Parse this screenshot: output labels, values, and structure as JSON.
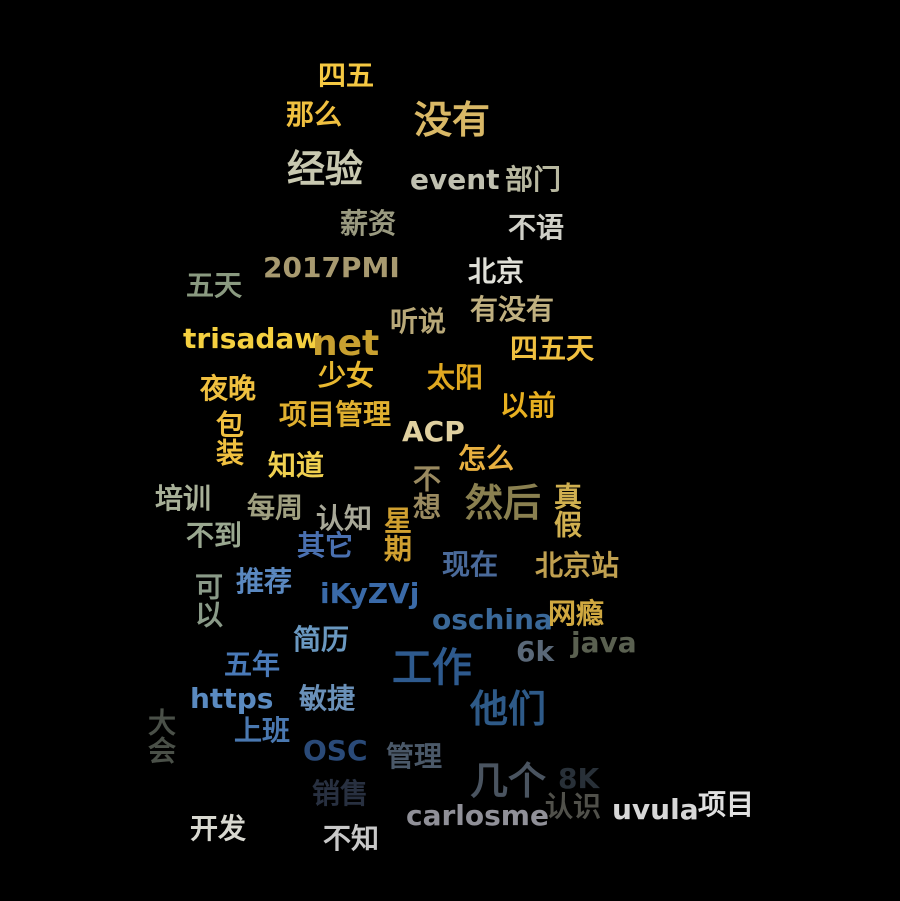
{
  "words": [
    {
      "text": "四五",
      "color": "#f5c842"
    },
    {
      "text": "那么",
      "color": "#f0c040"
    },
    {
      "text": "没有",
      "color": "#d9b866"
    },
    {
      "text": "经验",
      "color": "#c8c8b0"
    },
    {
      "text": "event",
      "color": "#c0c0b0"
    },
    {
      "text": "部门",
      "color": "#b8b8a0"
    },
    {
      "text": "薪资",
      "color": "#9a9a80"
    },
    {
      "text": "不语",
      "color": "#d0d0c8"
    },
    {
      "text": "2017PMI",
      "color": "#a89a70"
    },
    {
      "text": "北京",
      "color": "#e0e0d8"
    },
    {
      "text": "五天",
      "color": "#8a9a80"
    },
    {
      "text": "有没有",
      "color": "#c0b080"
    },
    {
      "text": "听说",
      "color": "#b8a878"
    },
    {
      "text": "trisadaw",
      "color": "#f5d040"
    },
    {
      "text": "net",
      "color": "#c8a030"
    },
    {
      "text": "四五天",
      "color": "#f0c040"
    },
    {
      "text": "少女",
      "color": "#e8b830"
    },
    {
      "text": "太阳",
      "color": "#e0a820"
    },
    {
      "text": "夜晚",
      "color": "#f0c040"
    },
    {
      "text": "以前",
      "color": "#e8b020"
    },
    {
      "text": "项目管理",
      "color": "#e0b030"
    },
    {
      "text": "ACP",
      "color": "#e0d0a0"
    },
    {
      "text": "包装",
      "color": "#f0c040"
    },
    {
      "text": "怎么",
      "color": "#e8b040"
    },
    {
      "text": "知道",
      "color": "#f0d050"
    },
    {
      "text": "不想",
      "color": "#9a8a60"
    },
    {
      "text": "然后",
      "color": "#8a8050"
    },
    {
      "text": "培训",
      "color": "#a8b098"
    },
    {
      "text": "每周",
      "color": "#a0a080"
    },
    {
      "text": "认知",
      "color": "#a8a898"
    },
    {
      "text": "星期",
      "color": "#d0a030"
    },
    {
      "text": "真假",
      "color": "#d0b050"
    },
    {
      "text": "不到",
      "color": "#9aa890"
    },
    {
      "text": "其它",
      "color": "#4a70b0"
    },
    {
      "text": "现在",
      "color": "#4a6a9a"
    },
    {
      "text": "北京站",
      "color": "#c0a050"
    },
    {
      "text": "可以",
      "color": "#8a9a88"
    },
    {
      "text": "推荐",
      "color": "#5a88c0"
    },
    {
      "text": "iKyZVj",
      "color": "#3a6aa8"
    },
    {
      "text": "oschina",
      "color": "#3a6898"
    },
    {
      "text": "网瘾",
      "color": "#d0a840"
    },
    {
      "text": "java",
      "color": "#5a6050"
    },
    {
      "text": "简历",
      "color": "#6a98c0"
    },
    {
      "text": "6k",
      "color": "#5a6878"
    },
    {
      "text": "五年",
      "color": "#4a7ab8"
    },
    {
      "text": "工作",
      "color": "#2e5a8e"
    },
    {
      "text": "https",
      "color": "#5a8ac0"
    },
    {
      "text": "敏捷",
      "color": "#6a90b8"
    },
    {
      "text": "他们",
      "color": "#2e5a88"
    },
    {
      "text": "大会",
      "color": "#4a5048"
    },
    {
      "text": "上班",
      "color": "#4a78b0"
    },
    {
      "text": "OSC",
      "color": "#2a4a78"
    },
    {
      "text": "管理",
      "color": "#4a5868"
    },
    {
      "text": "几个",
      "color": "#4a5460"
    },
    {
      "text": "8K",
      "color": "#283038"
    },
    {
      "text": "销售",
      "color": "#283040"
    },
    {
      "text": "认识",
      "color": "#50504a"
    },
    {
      "text": "uvula",
      "color": "#d8d8d8"
    },
    {
      "text": "项目",
      "color": "#e0e0e0"
    },
    {
      "text": "开发",
      "color": "#d8d8d0"
    },
    {
      "text": "carlosme",
      "color": "#909098"
    },
    {
      "text": "不知",
      "color": "#c8c8c8"
    }
  ]
}
